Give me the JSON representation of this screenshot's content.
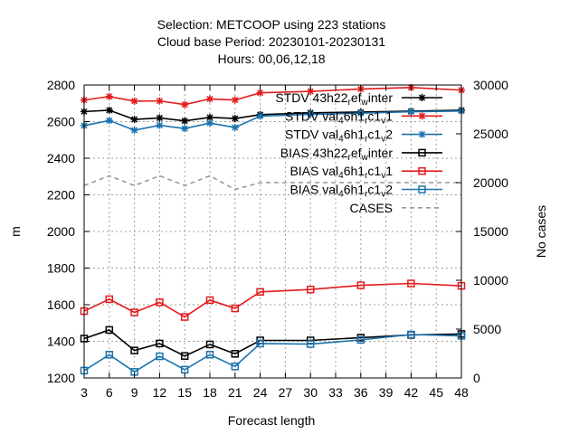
{
  "chart_data": {
    "type": "line",
    "title_lines": [
      "Selection: METCOOP using   223 stations",
      "Cloud base   Period: 20230101-20230131",
      "Hours:  00,06,12,18"
    ],
    "xlabel": "Forecast length",
    "ylabel": "m",
    "y2label": "No cases",
    "xlim": [
      3,
      48
    ],
    "ylim": [
      1200,
      2800
    ],
    "y2lim": [
      0,
      30000
    ],
    "xticks": [
      3,
      6,
      9,
      12,
      15,
      18,
      21,
      24,
      27,
      30,
      33,
      36,
      39,
      42,
      45,
      48
    ],
    "yticks": [
      1200,
      1400,
      1600,
      1800,
      2000,
      2200,
      2400,
      2600,
      2800
    ],
    "y2ticks": [
      0,
      5000,
      10000,
      15000,
      20000,
      25000,
      30000
    ],
    "grid": true,
    "legend_position": "top-right",
    "series": [
      {
        "name": "STDV 43h22_r ef_w inter",
        "label_parts": [
          [
            "STDV 43h22",
            ""
          ],
          [
            "r",
            "sub"
          ],
          [
            "ef",
            ""
          ],
          [
            "w",
            "sub"
          ],
          [
            "inter",
            ""
          ]
        ],
        "color": "#000000",
        "marker": "star",
        "axis": "y",
        "x": [
          3,
          6,
          9,
          12,
          15,
          18,
          21,
          24,
          30,
          36,
          42,
          48
        ],
        "values": [
          2655,
          2662,
          2612,
          2620,
          2604,
          2623,
          2617,
          2638,
          2648,
          2652,
          2657,
          2662
        ]
      },
      {
        "name": "STDV val_4 6h1_r c1_v 1",
        "label_parts": [
          [
            "STDV val",
            ""
          ],
          [
            "4",
            "sub"
          ],
          [
            "6h1",
            ""
          ],
          [
            "r",
            "sub"
          ],
          [
            "c1",
            ""
          ],
          [
            "v",
            "sub"
          ],
          [
            "1",
            ""
          ]
        ],
        "color": "#e41a1c",
        "marker": "star",
        "axis": "y",
        "x": [
          3,
          6,
          9,
          12,
          15,
          18,
          21,
          24,
          30,
          36,
          42,
          48
        ],
        "values": [
          2718,
          2737,
          2712,
          2713,
          2693,
          2724,
          2718,
          2757,
          2765,
          2778,
          2786,
          2772
        ]
      },
      {
        "name": "STDV val_4 6h1_r c1_v 2",
        "label_parts": [
          [
            "STDV val",
            ""
          ],
          [
            "4",
            "sub"
          ],
          [
            "6h1",
            ""
          ],
          [
            "r",
            "sub"
          ],
          [
            "c1",
            ""
          ],
          [
            "v",
            "sub"
          ],
          [
            "2",
            ""
          ]
        ],
        "color": "#1a73ae",
        "marker": "star",
        "axis": "y",
        "x": [
          3,
          6,
          9,
          12,
          15,
          18,
          21,
          24,
          30,
          36,
          42,
          48
        ],
        "values": [
          2578,
          2606,
          2553,
          2580,
          2562,
          2592,
          2568,
          2630,
          2640,
          2646,
          2654,
          2658
        ]
      },
      {
        "name": "BIAS 43h22_r ef_w inter",
        "label_parts": [
          [
            "BIAS 43h22",
            ""
          ],
          [
            "r",
            "sub"
          ],
          [
            "ef",
            ""
          ],
          [
            "w",
            "sub"
          ],
          [
            "inter",
            ""
          ]
        ],
        "color": "#000000",
        "marker": "square",
        "axis": "y",
        "x": [
          3,
          6,
          9,
          12,
          15,
          18,
          21,
          24,
          30,
          36,
          42,
          48
        ],
        "values": [
          1415,
          1462,
          1350,
          1388,
          1320,
          1383,
          1332,
          1405,
          1405,
          1420,
          1435,
          1440
        ]
      },
      {
        "name": "BIAS val_4 6h1_r c1_v 1",
        "label_parts": [
          [
            "BIAS val",
            ""
          ],
          [
            "4",
            "sub"
          ],
          [
            "6h1",
            ""
          ],
          [
            "r",
            "sub"
          ],
          [
            "c1",
            ""
          ],
          [
            "v",
            "sub"
          ],
          [
            "1",
            ""
          ]
        ],
        "color": "#e41a1c",
        "marker": "square",
        "axis": "y",
        "x": [
          3,
          6,
          9,
          12,
          15,
          18,
          21,
          24,
          30,
          36,
          42,
          48
        ],
        "values": [
          1565,
          1630,
          1558,
          1613,
          1533,
          1625,
          1580,
          1670,
          1683,
          1706,
          1716,
          1703
        ]
      },
      {
        "name": "BIAS val_4 6h1_r c1_v 2",
        "label_parts": [
          [
            "BIAS val",
            ""
          ],
          [
            "4",
            "sub"
          ],
          [
            "6h1",
            ""
          ],
          [
            "r",
            "sub"
          ],
          [
            "c1",
            ""
          ],
          [
            "v",
            "sub"
          ],
          [
            "2",
            ""
          ]
        ],
        "color": "#1a73ae",
        "marker": "square",
        "axis": "y",
        "x": [
          3,
          6,
          9,
          12,
          15,
          18,
          21,
          24,
          30,
          36,
          42,
          48
        ],
        "values": [
          1240,
          1327,
          1233,
          1318,
          1245,
          1327,
          1263,
          1388,
          1385,
          1408,
          1437,
          1430
        ]
      },
      {
        "name": "CASES",
        "label_parts": [
          [
            "CASES",
            ""
          ]
        ],
        "color": "#999999",
        "marker": "none",
        "dashed": true,
        "axis": "y2",
        "x": [
          3,
          6,
          9,
          12,
          15,
          18,
          21,
          24,
          30,
          36,
          42,
          48
        ],
        "values": [
          19700,
          20700,
          19700,
          20700,
          19700,
          20700,
          19300,
          20000,
          20000,
          20000,
          20000,
          20000
        ]
      }
    ]
  }
}
